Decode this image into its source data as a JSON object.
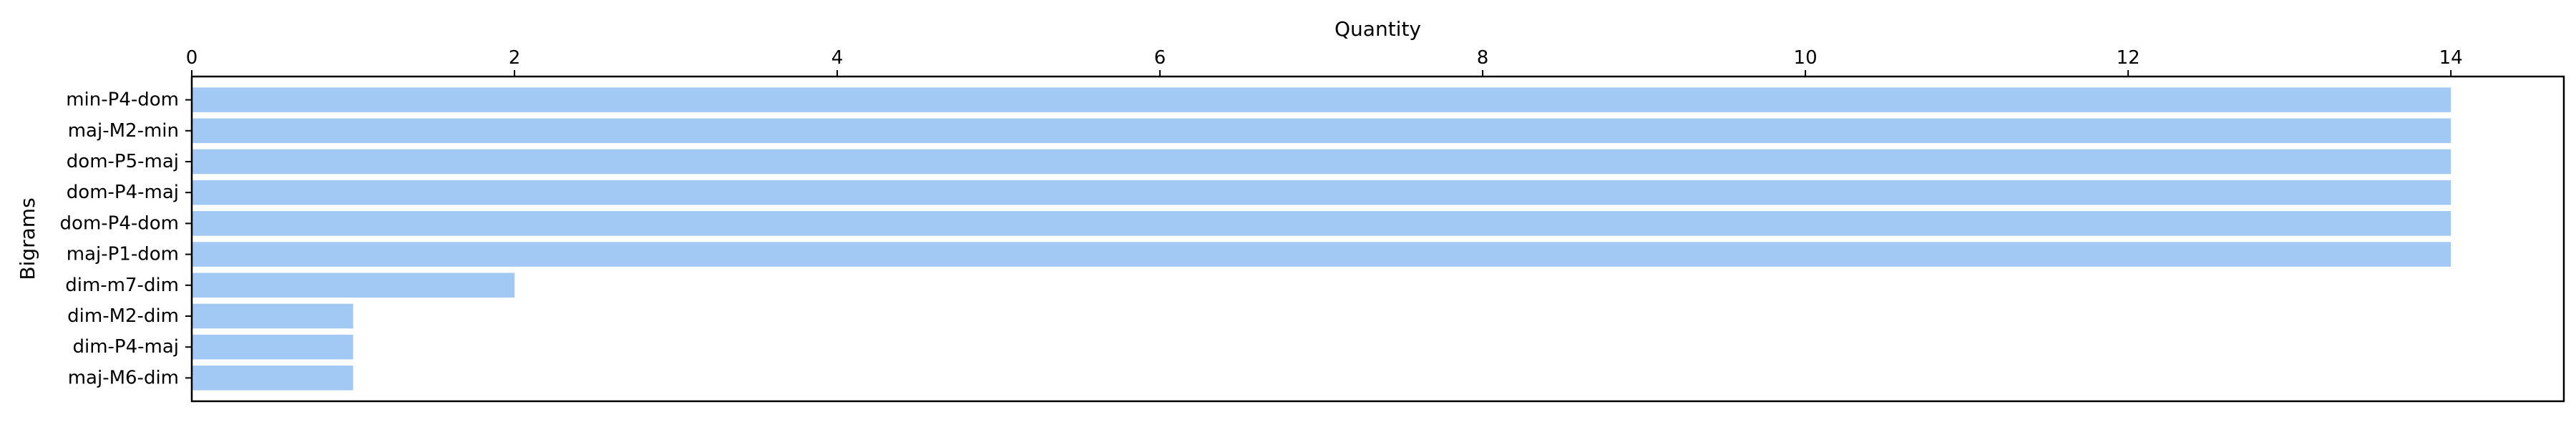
{
  "chart_data": {
    "type": "bar",
    "orientation": "horizontal",
    "xlabel": "Quantity",
    "ylabel": "Bigrams",
    "x_axis_position": "top",
    "xlim": [
      0,
      14.7
    ],
    "xticks": [
      0,
      2,
      4,
      6,
      8,
      10,
      12,
      14
    ],
    "grid": false,
    "legend": "none",
    "categories": [
      "min-P4-dom",
      "maj-M2-min",
      "dom-P5-maj",
      "dom-P4-maj",
      "dom-P4-dom",
      "maj-P1-dom",
      "dim-m7-dim",
      "dim-M2-dim",
      "dim-P4-maj",
      "maj-M6-dim"
    ],
    "values": [
      14,
      14,
      14,
      14,
      14,
      14,
      2,
      1,
      1,
      1
    ],
    "bar_color": "#a1c9f4"
  }
}
